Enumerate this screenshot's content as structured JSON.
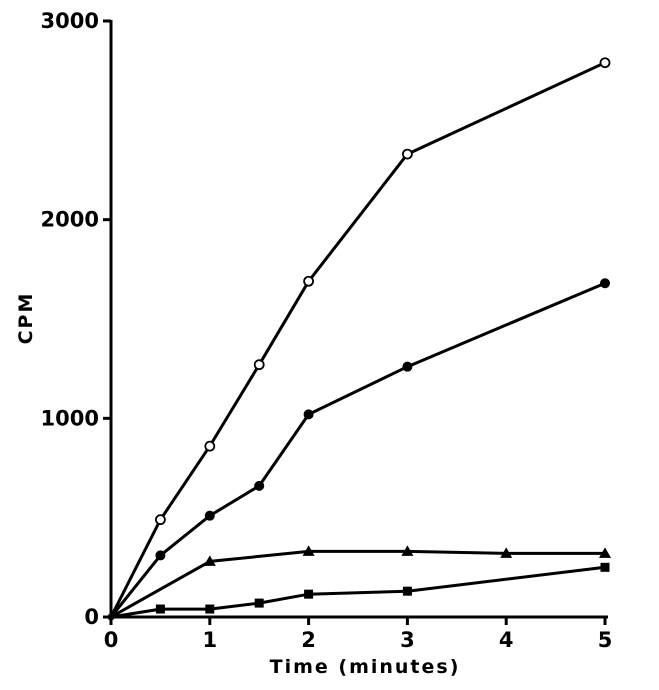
{
  "chart_data": {
    "type": "line",
    "title": "",
    "xlabel": "Time (minutes)",
    "ylabel": "CPM",
    "xlim": [
      0,
      5
    ],
    "ylim": [
      0,
      3000
    ],
    "x_ticks": [
      "0",
      "1",
      "2",
      "3",
      "4",
      "5"
    ],
    "y_ticks": [
      "0",
      "1000",
      "2000",
      "3000"
    ],
    "grid": false,
    "legend": "none",
    "series": [
      {
        "marker": "open-circle",
        "x": [
          0,
          0.5,
          1,
          1.5,
          2,
          3,
          5
        ],
        "y": [
          0,
          490,
          860,
          1270,
          1690,
          2330,
          2790
        ]
      },
      {
        "marker": "filled-circle",
        "x": [
          0,
          0.5,
          1,
          1.5,
          2,
          3,
          5
        ],
        "y": [
          0,
          310,
          510,
          660,
          1020,
          1260,
          1680
        ]
      },
      {
        "marker": "filled-triangle",
        "x": [
          0,
          1,
          2,
          3,
          4,
          5
        ],
        "y": [
          0,
          280,
          330,
          330,
          320,
          320
        ]
      },
      {
        "marker": "filled-square",
        "x": [
          0,
          0.5,
          1,
          1.5,
          2,
          3,
          5
        ],
        "y": [
          0,
          40,
          40,
          70,
          115,
          130,
          250
        ]
      }
    ]
  }
}
